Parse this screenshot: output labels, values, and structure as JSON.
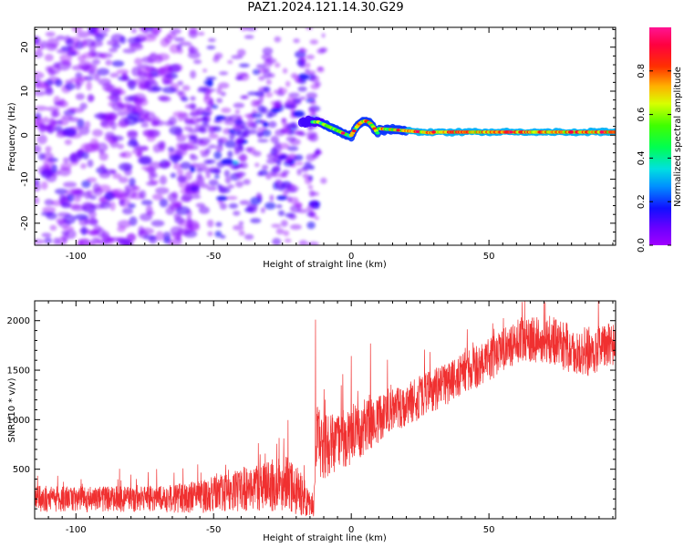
{
  "figure_title": "PAZ1.2024.121.14.30.G29",
  "colors": {
    "snr_line": "#f03030",
    "axis": "#000000"
  },
  "chart_data": [
    {
      "type": "heatmap",
      "title": "",
      "xlabel": "Height of straight line (km)",
      "ylabel": "Frequency (Hz)",
      "xlim": [
        -115,
        96
      ],
      "ylim": [
        -25,
        24.5
      ],
      "xticks": [
        -100,
        -50,
        0,
        50
      ],
      "yticks": [
        -20,
        -10,
        0,
        10,
        20
      ],
      "colormap": "gist_rainbow_r (violet-blue-cyan-green-yellow-red-pink)",
      "colorbar": {
        "label": "Normalized spectral amplitude",
        "ticks": [
          0.0,
          0.2,
          0.4,
          0.6,
          0.8
        ],
        "range": [
          0,
          1
        ]
      },
      "features": [
        {
          "region": "x -115 to -57",
          "description": "diffuse low-amplitude noise across all frequencies"
        },
        {
          "region": "x -57 to -15",
          "description": "clusters of moderate amplitude near 0 Hz, frequency spread narrowing"
        },
        {
          "region": "x -15 to 96",
          "description": "strong narrow line near 0.5-1 Hz, amplitude up to 1.0"
        }
      ]
    },
    {
      "type": "line",
      "title": "",
      "xlabel": "Height of straight line (km)",
      "ylabel": "SNR (10 * v/v)",
      "xlim": [
        -115,
        96
      ],
      "ylim": [
        0,
        2200
      ],
      "xticks": [
        -100,
        -50,
        0,
        50
      ],
      "yticks": [
        500,
        1000,
        1500,
        2000
      ],
      "series": [
        {
          "x": [
            -115,
            -105,
            -95,
            -85,
            -75,
            -65,
            -55,
            -45,
            -35,
            -25,
            -20,
            -15,
            -13.5,
            -12.5,
            -11,
            -5,
            0,
            10,
            20,
            30,
            40,
            50,
            55,
            60,
            65,
            70,
            75,
            80,
            85,
            90,
            96
          ],
          "y_mean": [
            200,
            200,
            195,
            200,
            200,
            205,
            220,
            270,
            320,
            360,
            320,
            150,
            160,
            900,
            700,
            780,
            850,
            1000,
            1150,
            1300,
            1450,
            1600,
            1700,
            1780,
            1800,
            1820,
            1780,
            1700,
            1680,
            1720,
            1770
          ],
          "y_spread": [
            120,
            120,
            120,
            120,
            120,
            130,
            150,
            180,
            220,
            260,
            250,
            120,
            130,
            300,
            300,
            280,
            280,
            220,
            200,
            200,
            200,
            200,
            200,
            200,
            210,
            220,
            230,
            230,
            230,
            210,
            200
          ]
        }
      ],
      "spikes": [
        {
          "x": -13,
          "y": 2010
        },
        {
          "x": 7,
          "y": 1770
        },
        {
          "x": 63,
          "y": 2200
        }
      ]
    }
  ]
}
